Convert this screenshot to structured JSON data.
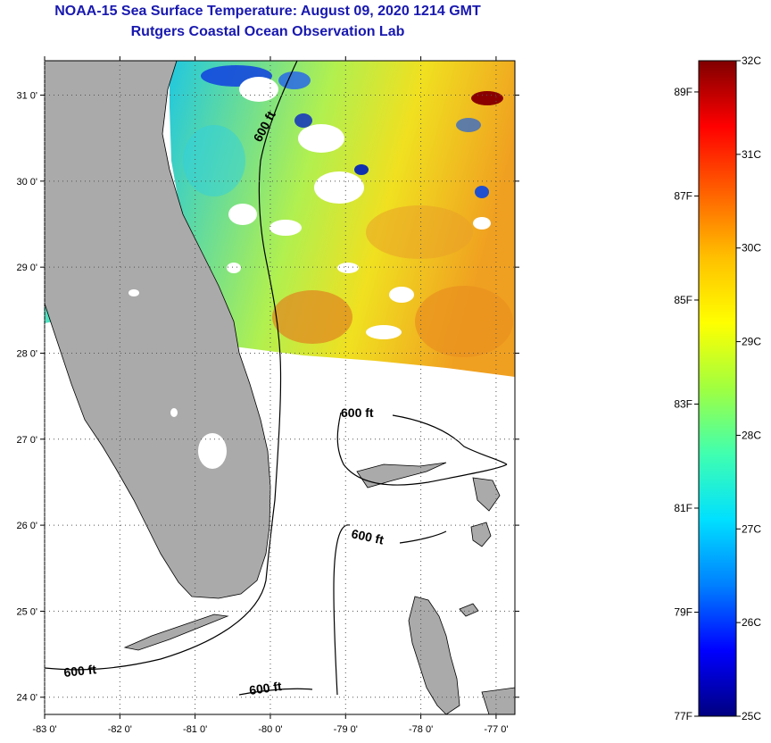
{
  "title": "NOAA-15 Sea Surface Temperature:  August 09, 2020 1214 GMT",
  "subtitle": "Rutgers Coastal Ocean Observation Lab",
  "map": {
    "lon_range": [
      -83,
      -76.75
    ],
    "lat_range": [
      23.8,
      31.4
    ],
    "lon_ticks": [
      {
        "value": -83,
        "label": "-83 0'"
      },
      {
        "value": -82,
        "label": "-82 0'"
      },
      {
        "value": -81,
        "label": "-81 0'"
      },
      {
        "value": -80,
        "label": "-80 0'"
      },
      {
        "value": -79,
        "label": "-79 0'"
      },
      {
        "value": -78,
        "label": "-78 0'"
      },
      {
        "value": -77,
        "label": "-77 0'"
      }
    ],
    "lat_ticks": [
      {
        "value": 24,
        "label": "24 0'"
      },
      {
        "value": 25,
        "label": "25 0'"
      },
      {
        "value": 26,
        "label": "26 0'"
      },
      {
        "value": 27,
        "label": "27 0'"
      },
      {
        "value": 28,
        "label": "28 0'"
      },
      {
        "value": 29,
        "label": "29 0'"
      },
      {
        "value": 30,
        "label": "30 0'"
      },
      {
        "value": 31,
        "label": "31 0'"
      }
    ],
    "contour_labels": [
      "600 ft",
      "600 ft",
      "600 ft",
      "600 ft"
    ],
    "colors": {
      "land": "#aaaaaa",
      "cloud": "#ffffff",
      "contour": "#000000",
      "grid": "#555555"
    }
  },
  "colorbar": {
    "min_c": 25,
    "max_c": 32,
    "celsius_labels": [
      {
        "value": 32,
        "label": "32C"
      },
      {
        "value": 31,
        "label": "31C"
      },
      {
        "value": 30,
        "label": "30C"
      },
      {
        "value": 29,
        "label": "29C"
      },
      {
        "value": 28,
        "label": "28C"
      },
      {
        "value": 27,
        "label": "27C"
      },
      {
        "value": 26,
        "label": "26C"
      },
      {
        "value": 25,
        "label": "25C"
      }
    ],
    "fahrenheit_labels": [
      {
        "value": 89,
        "label": "89F"
      },
      {
        "value": 87,
        "label": "87F"
      },
      {
        "value": 85,
        "label": "85F"
      },
      {
        "value": 83,
        "label": "83F"
      },
      {
        "value": 81,
        "label": "81F"
      },
      {
        "value": 79,
        "label": "79F"
      },
      {
        "value": 77,
        "label": "77F"
      }
    ],
    "gradient": [
      "#000080",
      "#0000ff",
      "#0080ff",
      "#00e0ff",
      "#40ffb0",
      "#a0ff40",
      "#ffff00",
      "#ffc000",
      "#ff6000",
      "#ff0000",
      "#800000"
    ]
  }
}
